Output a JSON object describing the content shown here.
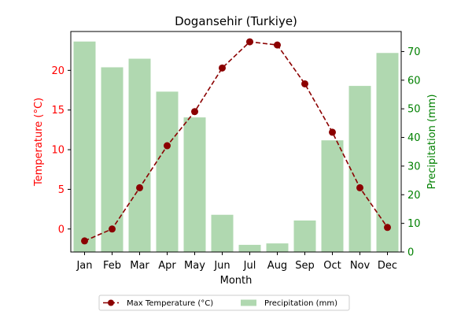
{
  "chart_data": {
    "type": "bar+line",
    "title": "Dogansehir (Turkiye)",
    "xlabel": "Month",
    "ylabel_left": "Temperature (°C)",
    "ylabel_right": "Precipitation (mm)",
    "categories": [
      "Jan",
      "Feb",
      "Mar",
      "Apr",
      "May",
      "Jun",
      "Jul",
      "Aug",
      "Sep",
      "Oct",
      "Nov",
      "Dec"
    ],
    "left_axis": {
      "ylim": [
        -2.9,
        24.9
      ],
      "ticks": [
        0,
        5,
        10,
        15,
        20
      ],
      "tick_labels": [
        "0",
        "5",
        "10",
        "15",
        "20"
      ],
      "color": "#ff0000"
    },
    "right_axis": {
      "ylim": [
        0,
        77
      ],
      "ticks": [
        0,
        10,
        20,
        30,
        40,
        50,
        60,
        70
      ],
      "tick_labels": [
        "0",
        "10",
        "20",
        "30",
        "40",
        "50",
        "60",
        "70"
      ],
      "color": "#008000"
    },
    "series": [
      {
        "name": "Max Temperature (°C)",
        "type": "line",
        "axis": "left",
        "color": "#8b0000",
        "values": [
          -1.5,
          0.0,
          5.2,
          10.5,
          14.8,
          20.3,
          23.6,
          23.2,
          18.3,
          12.2,
          5.2,
          0.2
        ]
      },
      {
        "name": "Precipitation (mm)",
        "type": "bar",
        "axis": "right",
        "color": "#b0d8b0",
        "values": [
          73.5,
          64.5,
          67.5,
          56.0,
          47.0,
          13.0,
          2.5,
          3.0,
          11.0,
          39.0,
          58.0,
          69.5
        ]
      }
    ],
    "legend": {
      "placement": "bottom-center",
      "entries": [
        "Max Temperature (°C)",
        "Precipitation (mm)"
      ]
    },
    "grid": false
  }
}
